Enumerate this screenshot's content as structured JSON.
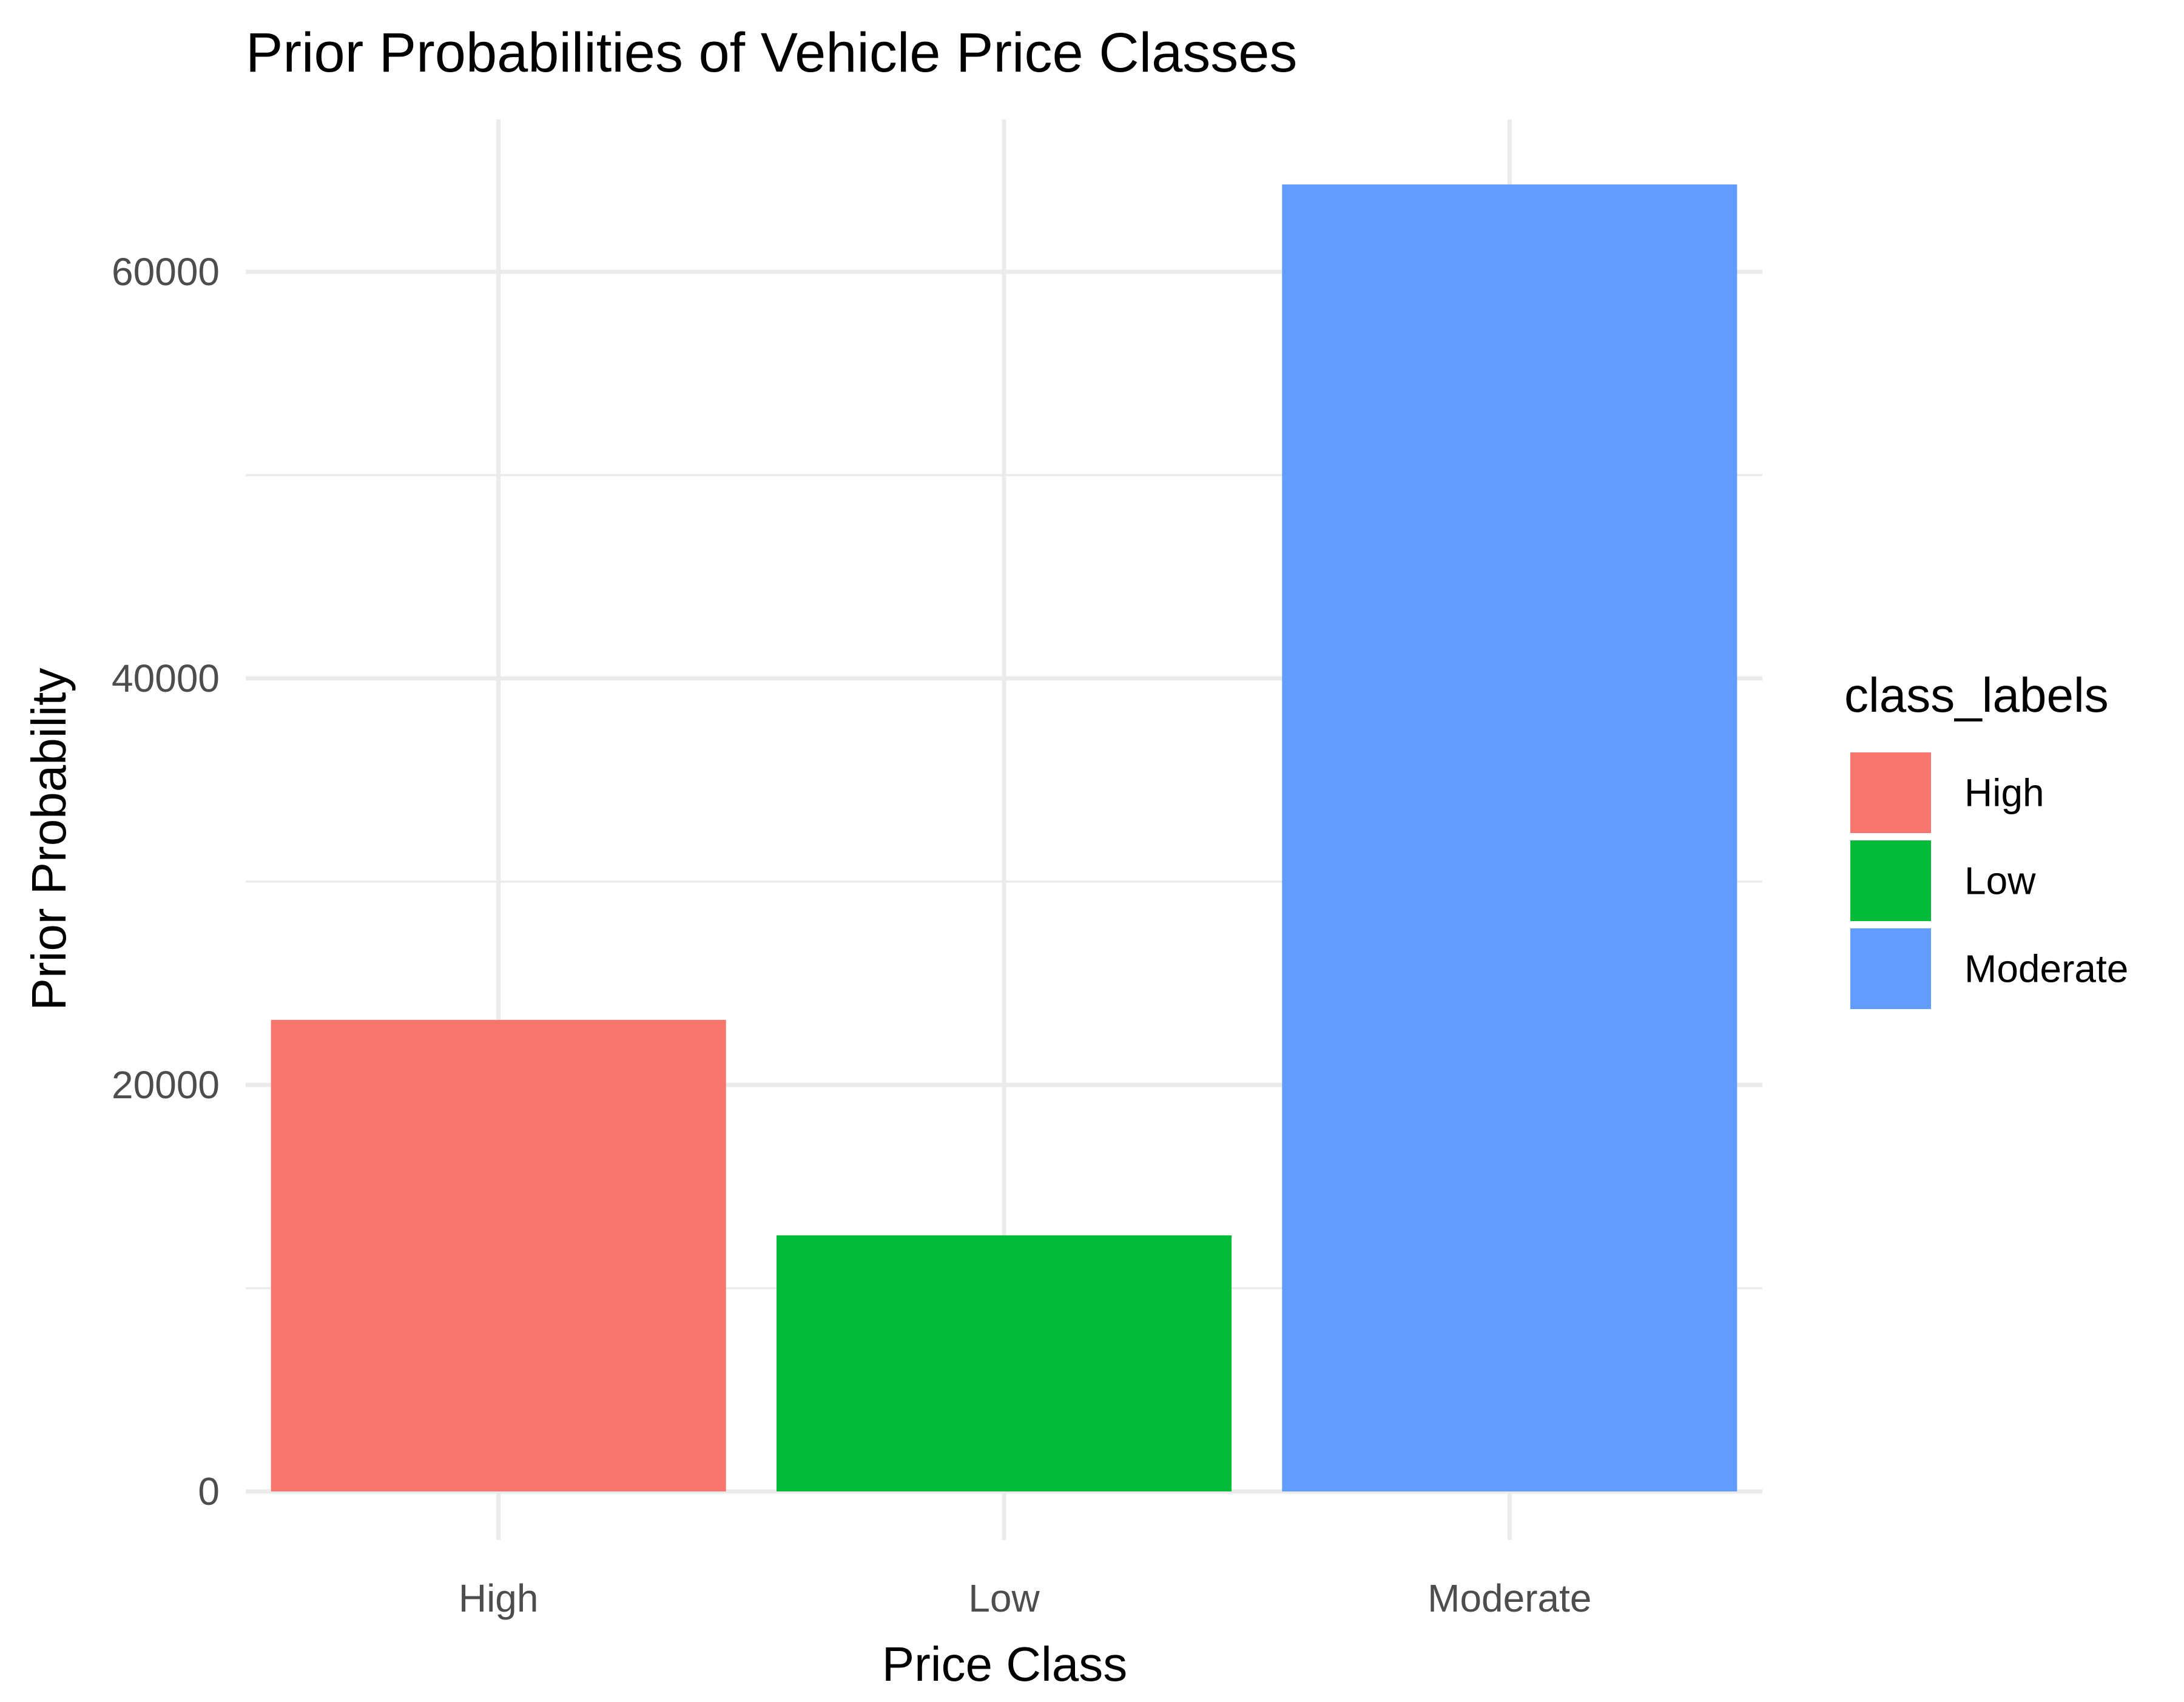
{
  "chart_data": {
    "type": "bar",
    "title": "Prior Probabilities of Vehicle Price Classes",
    "xlabel": "Price Class",
    "ylabel": "Prior Probability",
    "categories": [
      "High",
      "Low",
      "Moderate"
    ],
    "values": [
      23200,
      12600,
      64300
    ],
    "colors": [
      "#F8766D",
      "#00BA38",
      "#619CFF"
    ],
    "ylim": [
      0,
      67500
    ],
    "yticks": [
      0,
      20000,
      40000,
      60000
    ],
    "ytick_labels": [
      "0",
      "20000",
      "40000",
      "60000"
    ],
    "grid": true,
    "legend": {
      "title": "class_labels",
      "position": "right",
      "entries": [
        "High",
        "Low",
        "Moderate"
      ]
    }
  }
}
